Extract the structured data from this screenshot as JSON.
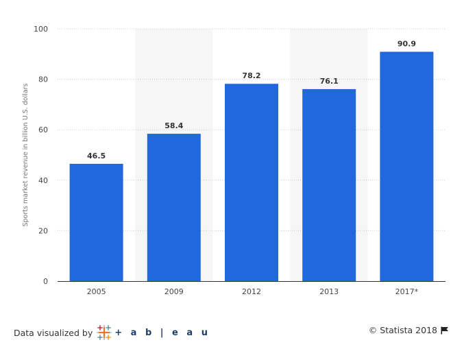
{
  "chart_data": {
    "type": "bar",
    "categories": [
      "2005",
      "2009",
      "2012",
      "2013",
      "2017*"
    ],
    "values": [
      46.5,
      58.4,
      78.2,
      76.1,
      90.9
    ],
    "value_labels": [
      "46.5",
      "58.4",
      "78.2",
      "76.1",
      "90.9"
    ],
    "ylabel": "Sports market revenue in billion U.S. dollars",
    "ylim": [
      0,
      100
    ],
    "yticks": [
      0,
      20,
      40,
      60,
      80,
      100
    ],
    "ytick_labels": [
      "0",
      "20",
      "40",
      "60",
      "80",
      "100"
    ],
    "grid": true,
    "bar_color": "#2168dc",
    "band_color": "#f6f6f6"
  },
  "footer": {
    "visualized_by": "Data visualized by",
    "tableau_logo_text": "+ a b | e a u",
    "tableau_icon": "tableau-plus-icon",
    "copyright": "© Statista 2018",
    "flag_icon": "flag-icon"
  }
}
